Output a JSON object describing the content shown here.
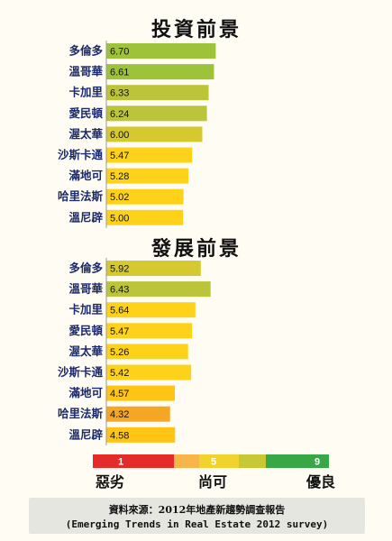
{
  "chart_data": [
    {
      "type": "bar",
      "orientation": "horizontal",
      "title": "投資前景",
      "categories": [
        "多倫多",
        "溫哥華",
        "卡加里",
        "愛民頓",
        "渥太華",
        "沙斯卡通",
        "滿地可",
        "哈里法斯",
        "溫尼辟"
      ],
      "values": [
        6.7,
        6.61,
        6.33,
        6.24,
        6.0,
        5.47,
        5.28,
        5.02,
        5.0
      ],
      "value_labels": [
        "6.70",
        "6.61",
        "6.33",
        "6.24",
        "6.00",
        "5.47",
        "5.28",
        "5.02",
        "5.00"
      ],
      "xlim": [
        1,
        9
      ]
    },
    {
      "type": "bar",
      "orientation": "horizontal",
      "title": "發展前景",
      "categories": [
        "多倫多",
        "溫哥華",
        "卡加里",
        "愛民頓",
        "渥太華",
        "沙斯卡通",
        "滿地可",
        "哈里法斯",
        "溫尼辟"
      ],
      "values": [
        5.92,
        6.43,
        5.64,
        5.47,
        5.26,
        5.42,
        4.57,
        4.32,
        4.58
      ],
      "value_labels": [
        "5.92",
        "6.43",
        "5.64",
        "5.47",
        "5.26",
        "5.42",
        "4.57",
        "4.32",
        "4.58"
      ],
      "xlim": [
        1,
        9
      ]
    }
  ],
  "scale": {
    "min_label": "1",
    "mid_label": "5",
    "max_label": "9",
    "words": [
      "惡劣",
      "尚可",
      "優良"
    ],
    "colors": [
      "#e52a2a",
      "#f6b64a",
      "#f0d32c",
      "#c7c934",
      "#37a845"
    ]
  },
  "footer": {
    "line1": "資料來源：2012年地產新趨勢調查報告",
    "line2": "(Emerging Trends in Real Estate 2012 survey)"
  }
}
